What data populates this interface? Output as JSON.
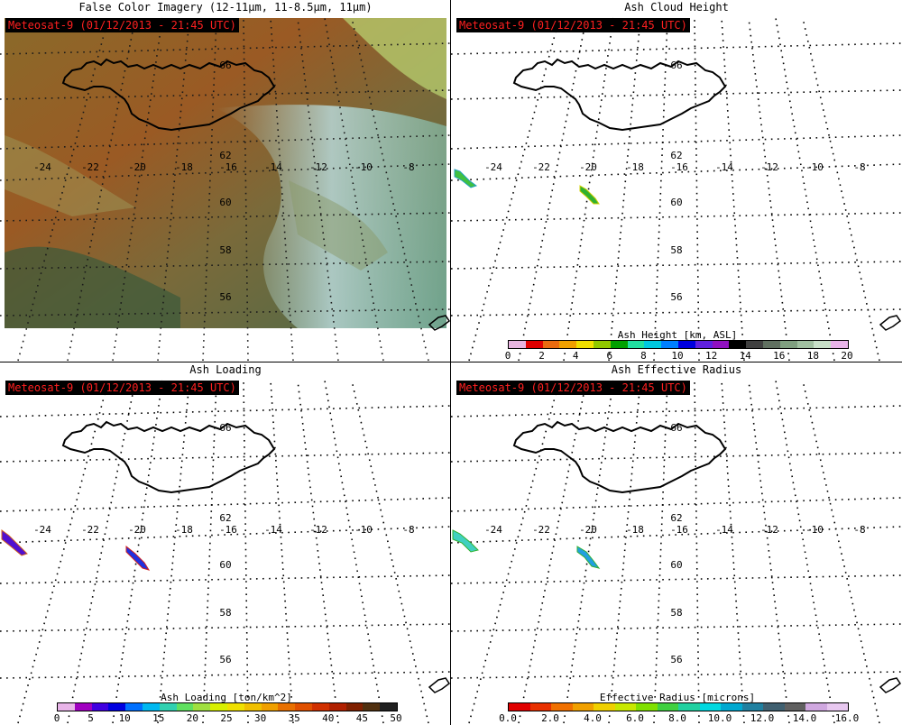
{
  "panels": [
    {
      "id": "false-color",
      "title": "False Color Imagery (12-11μm, 11-8.5μm, 11μm)",
      "stamp": "Meteosat-9  (01/12/2013 - 21:45 UTC)"
    },
    {
      "id": "ash-height",
      "title": "Ash Cloud Height",
      "stamp": "Meteosat-9  (01/12/2013 - 21:45 UTC)"
    },
    {
      "id": "ash-loading",
      "title": "Ash Loading",
      "stamp": "Meteosat-9  (01/12/2013 - 21:45 UTC)"
    },
    {
      "id": "ash-radius",
      "title": "Ash Effective Radius",
      "stamp": "Meteosat-9  (01/12/2013 - 21:45 UTC)"
    }
  ],
  "map": {
    "lon_labels": [
      "-24",
      "-22",
      "-20",
      "-18",
      "-16",
      "-14",
      "-12",
      "-10",
      "-8"
    ],
    "lat_labels": [
      "62",
      "60",
      "58",
      "56"
    ],
    "lat_label_top": "66"
  },
  "colorbars": {
    "height": {
      "title": "Ash Height [km, ASL]",
      "ticks": [
        "0",
        "2",
        "4",
        "6",
        "8",
        "10",
        "12",
        "14",
        "16",
        "18",
        "20"
      ],
      "colors": [
        "#e8b4e0",
        "#e00000",
        "#e86a10",
        "#f0a000",
        "#f0e000",
        "#90c800",
        "#00a000",
        "#20e0a0",
        "#00c8e0",
        "#0080ff",
        "#0000e0",
        "#6020e0",
        "#9010c0",
        "#000000",
        "#404040",
        "#607060",
        "#80a080",
        "#a0c0a0",
        "#c8e0c8",
        "#e8b4e8"
      ]
    },
    "loading": {
      "title": "Ash Loading [ton/km^2]",
      "ticks": [
        "0",
        "5",
        "10",
        "15",
        "20",
        "25",
        "30",
        "35",
        "40",
        "45",
        "50"
      ],
      "colors": [
        "#e8b4e8",
        "#a000c0",
        "#4000e0",
        "#0000e0",
        "#0070ff",
        "#00b8f0",
        "#30d0b0",
        "#60e060",
        "#a0e040",
        "#d8f000",
        "#f0e000",
        "#f0c000",
        "#f0a000",
        "#e87000",
        "#e05000",
        "#d03000",
        "#b02000",
        "#802000",
        "#503010",
        "#202020"
      ]
    },
    "radius": {
      "title": "Effective Radius [microns]",
      "ticks": [
        "0.0",
        "2.0",
        "4.0",
        "6.0",
        "8.0",
        "10.0",
        "12.0",
        "14.0",
        "16.0"
      ],
      "colors": [
        "#e00000",
        "#e83000",
        "#f07000",
        "#f0a000",
        "#f0d000",
        "#c8e800",
        "#80e000",
        "#40d040",
        "#20d0a0",
        "#00d8e0",
        "#00a8d0",
        "#2080a0",
        "#406070",
        "#606060",
        "#d0a8e0",
        "#e8c8f0"
      ]
    }
  }
}
